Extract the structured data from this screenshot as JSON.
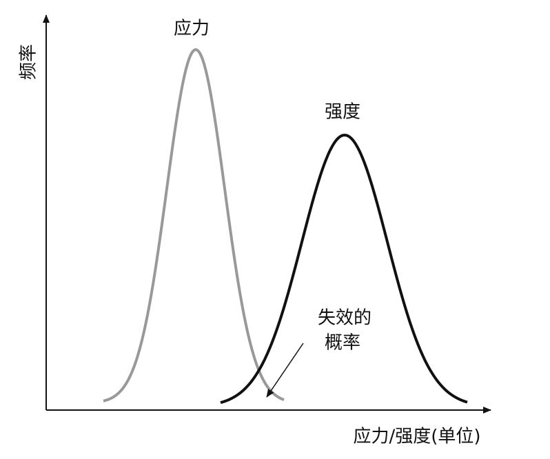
{
  "y_axis_label": "频率",
  "x_axis_label": "应力/强度(单位)",
  "curves": [
    {
      "label": "应力"
    },
    {
      "label": "强度"
    }
  ],
  "annotation": {
    "lines": [
      "失效的",
      "概率"
    ]
  }
}
